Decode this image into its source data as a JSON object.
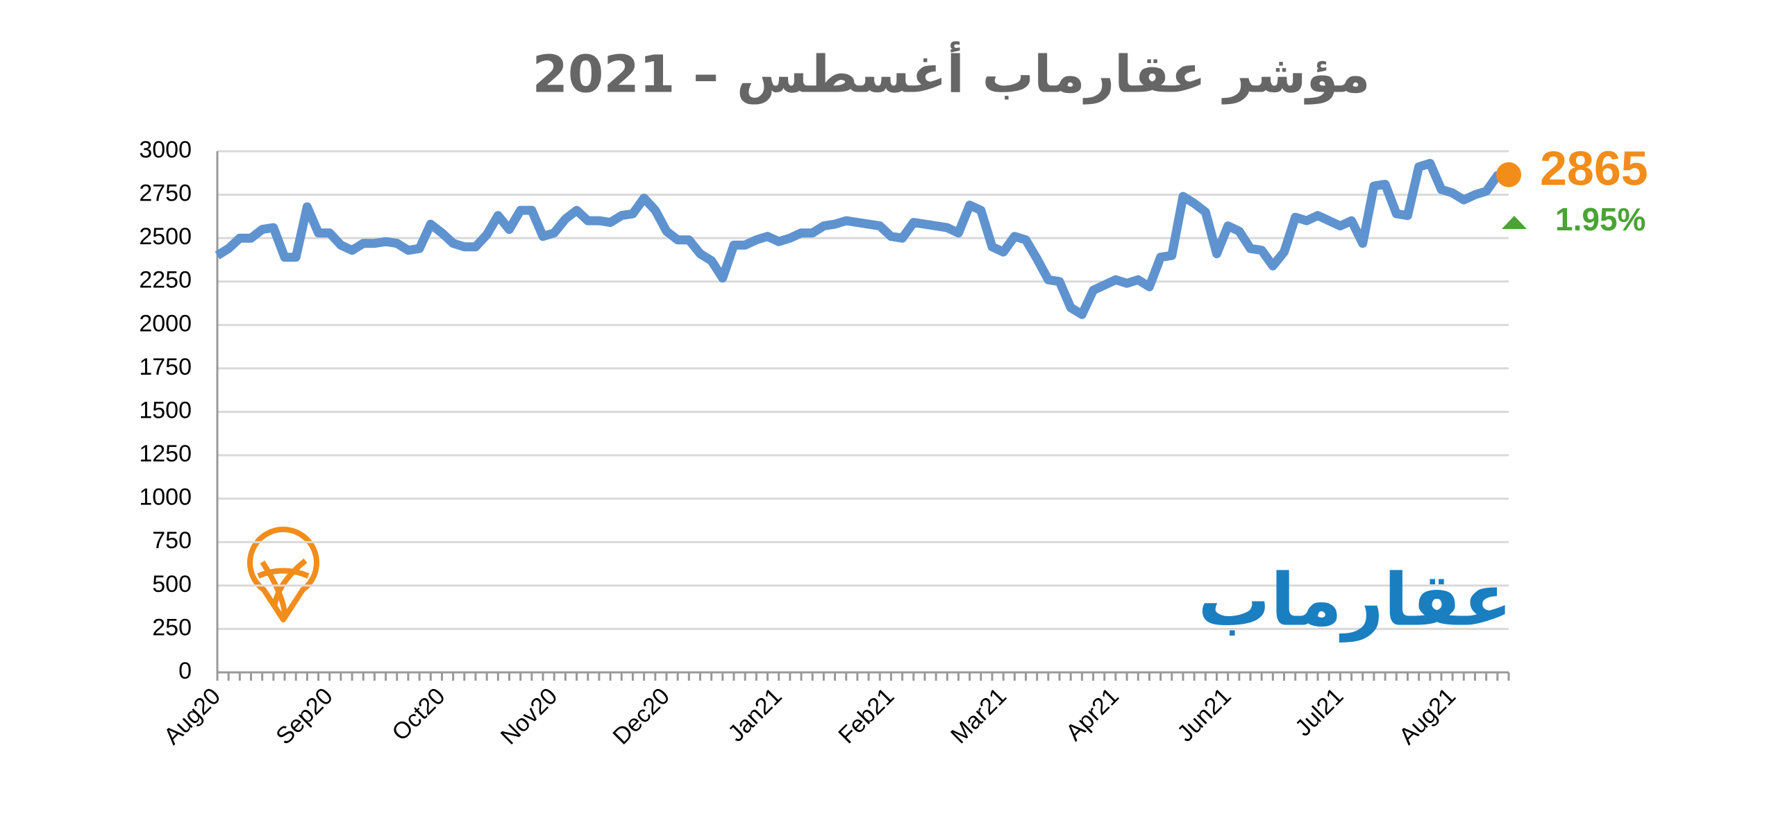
{
  "chart_data": {
    "type": "line",
    "title": "مؤشر عقارماب أغسطس – 2021",
    "brand": "عقارماب",
    "latest_label": "2865",
    "change_label": "1.95%",
    "categories": [
      "Aug20",
      null,
      null,
      null,
      null,
      null,
      null,
      null,
      null,
      null,
      "Sep20",
      null,
      null,
      null,
      null,
      null,
      null,
      null,
      null,
      null,
      "Oct20",
      null,
      null,
      null,
      null,
      null,
      null,
      null,
      null,
      null,
      "Nov20",
      null,
      null,
      null,
      null,
      null,
      null,
      null,
      null,
      null,
      "Dec20",
      null,
      null,
      null,
      null,
      null,
      null,
      null,
      null,
      null,
      "Jan21",
      null,
      null,
      null,
      null,
      null,
      null,
      null,
      null,
      null,
      "Feb21",
      null,
      null,
      null,
      null,
      null,
      null,
      null,
      null,
      null,
      "Mar21",
      null,
      null,
      null,
      null,
      null,
      null,
      null,
      null,
      null,
      "Apr21",
      null,
      null,
      null,
      null,
      null,
      null,
      null,
      null,
      null,
      "Jun21",
      null,
      null,
      null,
      null,
      null,
      null,
      null,
      null,
      null,
      "Jul21",
      null,
      null,
      null,
      null,
      null,
      null,
      null,
      null,
      null,
      "Aug21",
      null,
      null,
      null,
      null,
      null
    ],
    "series": [
      {
        "color": "#5f93cf",
        "values": [
          2400,
          2440,
          2500,
          2500,
          2550,
          2560,
          2390,
          2390,
          2680,
          2530,
          2530,
          2460,
          2430,
          2470,
          2470,
          2480,
          2470,
          2430,
          2440,
          2580,
          2530,
          2470,
          2450,
          2450,
          2520,
          2630,
          2550,
          2660,
          2660,
          2510,
          2530,
          2610,
          2660,
          2600,
          2600,
          2590,
          2630,
          2640,
          2730,
          2660,
          2540,
          2490,
          2490,
          2410,
          2370,
          2270,
          2460,
          2460,
          2490,
          2510,
          2480,
          2500,
          2530,
          2530,
          2570,
          2580,
          2600,
          2590,
          2580,
          2570,
          2510,
          2500,
          2590,
          2580,
          2570,
          2560,
          2530,
          2690,
          2660,
          2450,
          2420,
          2510,
          2490,
          2380,
          2260,
          2250,
          2100,
          2060,
          2200,
          2230,
          2260,
          2240,
          2260,
          2220,
          2390,
          2400,
          2740,
          2700,
          2650,
          2410,
          2570,
          2540,
          2440,
          2430,
          2340,
          2420,
          2620,
          2600,
          2630,
          2600,
          2570,
          2600,
          2470,
          2800,
          2810,
          2640,
          2630,
          2910,
          2930,
          2780,
          2760,
          2720,
          2750,
          2770,
          2860,
          2865
        ]
      }
    ],
    "ylim": [
      0,
      3000
    ],
    "yticks": [
      0,
      250,
      500,
      750,
      1000,
      1250,
      1500,
      1750,
      2000,
      2250,
      2500,
      2750,
      3000
    ],
    "grid": true,
    "latest_color": "#f28c1a",
    "change_color": "#4aa334",
    "brand_color": "#1a7fc1"
  }
}
